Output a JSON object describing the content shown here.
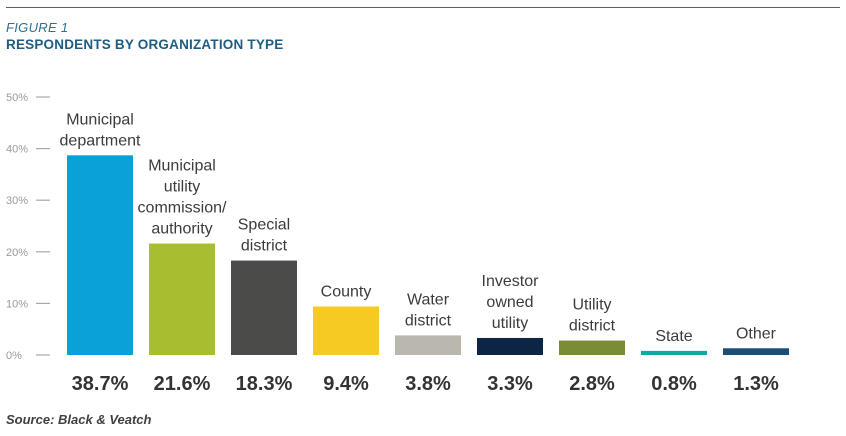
{
  "figure": {
    "label": "FIGURE 1",
    "title": "RESPONDENTS BY ORGANIZATION TYPE",
    "source": "Source: Black & Veatch"
  },
  "chart_data": {
    "type": "bar",
    "categories": [
      [
        "Municipal",
        "department"
      ],
      [
        "Municipal",
        "utility",
        "commission/",
        "authority"
      ],
      [
        "Special",
        "district"
      ],
      [
        "County"
      ],
      [
        "Water",
        "district"
      ],
      [
        "Investor",
        "owned",
        "utility"
      ],
      [
        "Utility",
        "district"
      ],
      [
        "State"
      ],
      [
        "Other"
      ]
    ],
    "values": [
      38.7,
      21.6,
      18.3,
      9.4,
      3.8,
      3.3,
      2.8,
      0.8,
      1.3
    ],
    "value_labels": [
      "38.7%",
      "21.6%",
      "18.3%",
      "9.4%",
      "3.8%",
      "3.3%",
      "2.8%",
      "0.8%",
      "1.3%"
    ],
    "colors": [
      "#0aa1d9",
      "#a8be2f",
      "#4b4c49",
      "#f6c923",
      "#bab7ae",
      "#0c2545",
      "#7a8c34",
      "#0cab9f",
      "#1a4d77"
    ],
    "yticks": [
      "0%",
      "10%",
      "20%",
      "30%",
      "40%",
      "50%"
    ],
    "ylim": [
      0,
      50
    ],
    "grid": false,
    "title": "RESPONDENTS BY ORGANIZATION TYPE"
  }
}
